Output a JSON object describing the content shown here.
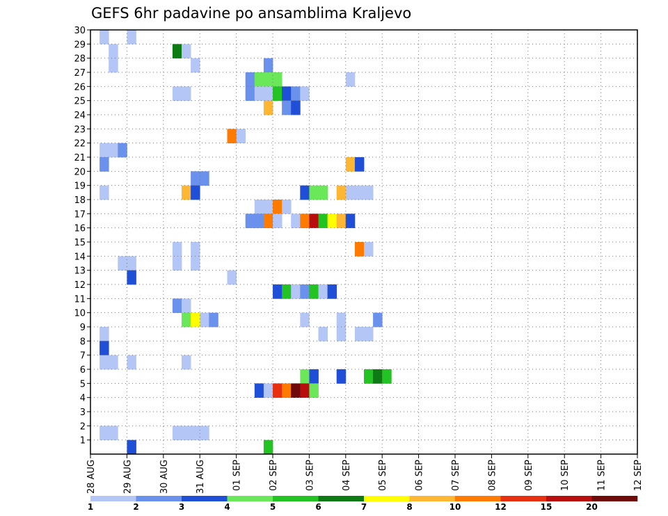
{
  "chart_data": {
    "type": "heatmap",
    "title": "GEFS 6hr padavine po ansamblima Kraljevo",
    "x_labels": [
      "28 AUG",
      "29 AUG",
      "30 AUG",
      "31 AUG",
      "01 SEP",
      "02 SEP",
      "03 SEP",
      "04 SEP",
      "05 SEP",
      "06 SEP",
      "07 SEP",
      "08 SEP",
      "09 SEP",
      "10 SEP",
      "11 SEP",
      "12 SEP"
    ],
    "y_labels": [
      "1",
      "2",
      "3",
      "4",
      "5",
      "6",
      "7",
      "8",
      "9",
      "10",
      "11",
      "12",
      "13",
      "14",
      "15",
      "16",
      "17",
      "18",
      "19",
      "20",
      "21",
      "22",
      "23",
      "24",
      "25",
      "26",
      "27",
      "28",
      "29",
      "30"
    ],
    "ylim": [
      0,
      30
    ],
    "xlim": [
      0,
      60
    ],
    "grid": true,
    "colorbar": {
      "levels": [
        "1",
        "2",
        "3",
        "4",
        "5",
        "6",
        "7",
        "8",
        "10",
        "12",
        "15",
        "20"
      ],
      "colors": [
        "#b3c6f5",
        "#6a91ec",
        "#1e4fd6",
        "#6be85a",
        "#22c322",
        "#0d7a14",
        "#ffff00",
        "#ffb733",
        "#ff7a00",
        "#e82f10",
        "#b80e0e",
        "#6e0a0a"
      ]
    },
    "cells": [
      [
        1,
        30,
        0
      ],
      [
        4,
        30,
        0
      ],
      [
        2,
        29,
        0
      ],
      [
        9,
        29,
        5
      ],
      [
        10,
        29,
        0
      ],
      [
        2,
        28,
        0
      ],
      [
        11,
        28,
        0
      ],
      [
        19,
        28,
        1
      ],
      [
        17,
        27,
        1
      ],
      [
        18,
        27,
        3
      ],
      [
        19,
        27,
        3
      ],
      [
        20,
        27,
        3
      ],
      [
        28,
        27,
        0
      ],
      [
        9,
        26,
        0
      ],
      [
        10,
        26,
        0
      ],
      [
        17,
        26,
        1
      ],
      [
        18,
        26,
        0
      ],
      [
        19,
        26,
        0
      ],
      [
        20,
        26,
        4
      ],
      [
        21,
        26,
        2
      ],
      [
        22,
        26,
        1
      ],
      [
        23,
        26,
        0
      ],
      [
        19,
        25,
        7
      ],
      [
        21,
        25,
        1
      ],
      [
        22,
        25,
        2
      ],
      [
        15,
        23,
        8
      ],
      [
        16,
        23,
        0
      ],
      [
        1,
        22,
        0
      ],
      [
        2,
        22,
        0
      ],
      [
        3,
        22,
        1
      ],
      [
        1,
        21,
        1
      ],
      [
        28,
        21,
        7
      ],
      [
        29,
        21,
        2
      ],
      [
        11,
        20,
        1
      ],
      [
        12,
        20,
        1
      ],
      [
        1,
        19,
        0
      ],
      [
        10,
        19,
        7
      ],
      [
        11,
        19,
        2
      ],
      [
        23,
        19,
        2
      ],
      [
        24,
        19,
        3
      ],
      [
        25,
        19,
        3
      ],
      [
        27,
        19,
        7
      ],
      [
        28,
        19,
        0
      ],
      [
        29,
        19,
        0
      ],
      [
        30,
        19,
        0
      ],
      [
        18,
        18,
        0
      ],
      [
        19,
        18,
        0
      ],
      [
        20,
        18,
        8
      ],
      [
        21,
        18,
        0
      ],
      [
        17,
        17,
        1
      ],
      [
        18,
        17,
        1
      ],
      [
        19,
        17,
        8
      ],
      [
        20,
        17,
        0
      ],
      [
        22,
        17,
        0
      ],
      [
        23,
        17,
        8
      ],
      [
        24,
        17,
        10
      ],
      [
        25,
        17,
        4
      ],
      [
        26,
        17,
        6
      ],
      [
        27,
        17,
        7
      ],
      [
        28,
        17,
        2
      ],
      [
        9,
        15,
        0
      ],
      [
        11,
        15,
        0
      ],
      [
        29,
        15,
        8
      ],
      [
        30,
        15,
        0
      ],
      [
        3,
        14,
        0
      ],
      [
        4,
        14,
        0
      ],
      [
        9,
        14,
        0
      ],
      [
        11,
        14,
        0
      ],
      [
        4,
        13,
        2
      ],
      [
        15,
        13,
        0
      ],
      [
        20,
        12,
        2
      ],
      [
        21,
        12,
        4
      ],
      [
        22,
        12,
        0
      ],
      [
        23,
        12,
        1
      ],
      [
        24,
        12,
        4
      ],
      [
        25,
        12,
        0
      ],
      [
        26,
        12,
        2
      ],
      [
        9,
        11,
        1
      ],
      [
        10,
        11,
        0
      ],
      [
        10,
        10,
        3
      ],
      [
        11,
        10,
        6
      ],
      [
        12,
        10,
        0
      ],
      [
        13,
        10,
        1
      ],
      [
        23,
        10,
        0
      ],
      [
        27,
        10,
        0
      ],
      [
        31,
        10,
        1
      ],
      [
        1,
        9,
        0
      ],
      [
        25,
        9,
        0
      ],
      [
        27,
        9,
        0
      ],
      [
        29,
        9,
        0
      ],
      [
        30,
        9,
        0
      ],
      [
        1,
        8,
        2
      ],
      [
        1,
        7,
        0
      ],
      [
        2,
        7,
        0
      ],
      [
        4,
        7,
        0
      ],
      [
        10,
        7,
        0
      ],
      [
        23,
        6,
        3
      ],
      [
        24,
        6,
        2
      ],
      [
        27,
        6,
        2
      ],
      [
        30,
        6,
        4
      ],
      [
        31,
        6,
        5
      ],
      [
        32,
        6,
        4
      ],
      [
        18,
        5,
        2
      ],
      [
        19,
        5,
        0
      ],
      [
        20,
        5,
        9
      ],
      [
        21,
        5,
        8
      ],
      [
        22,
        5,
        11
      ],
      [
        23,
        5,
        10
      ],
      [
        24,
        5,
        3
      ],
      [
        1,
        2,
        0
      ],
      [
        2,
        2,
        0
      ],
      [
        9,
        2,
        0
      ],
      [
        10,
        2,
        0
      ],
      [
        11,
        2,
        0
      ],
      [
        12,
        2,
        0
      ],
      [
        4,
        1,
        2
      ],
      [
        19,
        1,
        4
      ]
    ]
  }
}
